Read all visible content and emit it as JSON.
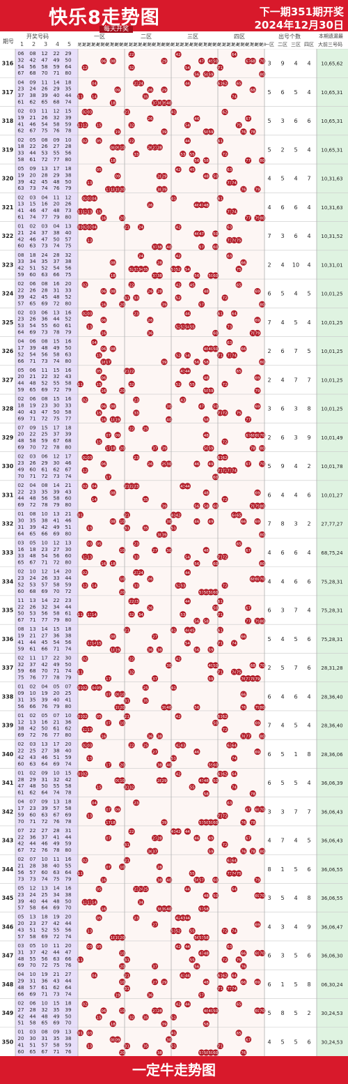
{
  "header": {
    "title": "快乐8走势图",
    "tagline": "每天开奖",
    "next_draw": "下一期351期开奖",
    "next_date": "2024年12月30日"
  },
  "columns": {
    "period": "期号",
    "numbers": "开奖号码",
    "number_cols": [
      "1",
      "2",
      "3",
      "4",
      "5"
    ],
    "zone1": "一区",
    "zone2": "二区",
    "zone3": "三区",
    "zone4": "四区",
    "tail_labels": [
      "尾1",
      "尾2",
      "尾3",
      "尾4",
      "尾5",
      "尾6",
      "尾7",
      "尾8",
      "尾9",
      "尾0"
    ],
    "counts_title": "出号个数",
    "counts_cols": [
      "一区",
      "二区",
      "三区",
      "四区"
    ],
    "missing_title": "本期遗漏最",
    "missing_sub": "大前三号码"
  },
  "footer": {
    "brand": "一定牛走势图"
  },
  "chart_data": {
    "type": "table",
    "rows": [
      {
        "period": "316",
        "nums": [
          6,
          8,
          12,
          22,
          29,
          32,
          42,
          47,
          49,
          50,
          54,
          56,
          58,
          59,
          64,
          67,
          68,
          70,
          71,
          80
        ],
        "counts": [
          3,
          9,
          4,
          4
        ],
        "miss": "10,65,62"
      },
      {
        "period": "317",
        "nums": [
          4,
          9,
          11,
          14,
          18,
          23,
          24,
          26,
          29,
          35,
          37,
          38,
          39,
          40,
          44,
          61,
          62,
          65,
          68,
          74
        ],
        "counts": [
          5,
          6,
          5,
          4
        ],
        "miss": "10,65,31"
      },
      {
        "period": "318",
        "nums": [
          2,
          3,
          11,
          12,
          15,
          19,
          21,
          26,
          32,
          39,
          41,
          46,
          54,
          58,
          59,
          62,
          67,
          75,
          76,
          78
        ],
        "counts": [
          5,
          3,
          6,
          6
        ],
        "miss": "10,65,31"
      },
      {
        "period": "319",
        "nums": [
          2,
          5,
          8,
          9,
          10,
          18,
          22,
          26,
          27,
          28,
          33,
          44,
          53,
          55,
          56,
          58,
          61,
          72,
          77,
          80
        ],
        "counts": [
          5,
          2,
          5,
          4
        ],
        "miss": "10,65,31"
      },
      {
        "period": "320",
        "nums": [
          5,
          9,
          13,
          17,
          18,
          19,
          20,
          28,
          29,
          38,
          39,
          42,
          45,
          48,
          50,
          63,
          73,
          74,
          76,
          79
        ],
        "counts": [
          4,
          5,
          4,
          7
        ],
        "miss": "10,31,63"
      },
      {
        "period": "321",
        "nums": [
          2,
          3,
          4,
          11,
          12,
          13,
          15,
          16,
          20,
          26,
          41,
          46,
          47,
          48,
          73,
          61,
          74,
          77,
          79,
          80
        ],
        "counts": [
          4,
          6,
          6,
          4
        ],
        "miss": "10,31,63"
      },
      {
        "period": "322",
        "nums": [
          1,
          2,
          3,
          4,
          13,
          21,
          24,
          37,
          38,
          40,
          42,
          46,
          47,
          50,
          57,
          60,
          63,
          73,
          74,
          75
        ],
        "counts": [
          7,
          3,
          6,
          4
        ],
        "miss": "10,31,52"
      },
      {
        "period": "323",
        "nums": [
          8,
          18,
          24,
          28,
          32,
          33,
          34,
          35,
          37,
          38,
          42,
          51,
          52,
          54,
          56,
          59,
          60,
          63,
          66,
          75
        ],
        "counts": [
          2,
          4,
          10,
          4
        ],
        "miss": "10,31,01"
      },
      {
        "period": "324",
        "nums": [
          2,
          6,
          8,
          16,
          20,
          22,
          26,
          28,
          31,
          33,
          39,
          42,
          45,
          48,
          52,
          57,
          65,
          69,
          72,
          80
        ],
        "counts": [
          6,
          5,
          4,
          5
        ],
        "miss": "10,01,25"
      },
      {
        "period": "325",
        "nums": [
          2,
          3,
          6,
          13,
          16,
          23,
          26,
          36,
          44,
          52,
          53,
          54,
          55,
          60,
          61,
          64,
          69,
          73,
          78,
          79
        ],
        "counts": [
          7,
          4,
          5,
          4
        ],
        "miss": "10,01,25"
      },
      {
        "period": "326",
        "nums": [
          4,
          6,
          8,
          15,
          16,
          17,
          39,
          48,
          49,
          50,
          52,
          54,
          56,
          58,
          63,
          66,
          71,
          73,
          74,
          80
        ],
        "counts": [
          2,
          6,
          7,
          5
        ],
        "miss": "10,01,25"
      },
      {
        "period": "327",
        "nums": [
          5,
          6,
          11,
          15,
          16,
          20,
          21,
          22,
          32,
          43,
          44,
          48,
          52,
          55,
          58,
          59,
          65,
          69,
          72,
          79
        ],
        "counts": [
          2,
          4,
          7,
          7
        ],
        "miss": "10,01,25"
      },
      {
        "period": "328",
        "nums": [
          2,
          6,
          8,
          15,
          16,
          18,
          19,
          23,
          30,
          33,
          40,
          43,
          47,
          50,
          58,
          69,
          71,
          72,
          75,
          77
        ],
        "counts": [
          3,
          6,
          3,
          8
        ],
        "miss": "10,01,25"
      },
      {
        "period": "329",
        "nums": [
          7,
          9,
          15,
          17,
          18,
          20,
          22,
          25,
          37,
          39,
          48,
          58,
          59,
          67,
          68,
          69,
          70,
          72,
          78,
          80
        ],
        "counts": [
          2,
          6,
          3,
          9
        ],
        "miss": "10,01,49"
      },
      {
        "period": "330",
        "nums": [
          2,
          3,
          6,
          12,
          17,
          23,
          26,
          29,
          30,
          46,
          49,
          60,
          61,
          62,
          67,
          70,
          71,
          72,
          73,
          74
        ],
        "counts": [
          5,
          9,
          4,
          2
        ],
        "miss": "10,01,78"
      },
      {
        "period": "331",
        "nums": [
          2,
          4,
          8,
          14,
          21,
          22,
          23,
          35,
          39,
          43,
          44,
          48,
          56,
          58,
          60,
          69,
          72,
          78,
          79,
          80
        ],
        "counts": [
          6,
          4,
          4,
          6
        ],
        "miss": "10,01,27"
      },
      {
        "period": "332",
        "nums": [
          1,
          8,
          10,
          13,
          21,
          30,
          35,
          38,
          41,
          46,
          31,
          39,
          42,
          49,
          51,
          64,
          65,
          66,
          69,
          80
        ],
        "counts": [
          7,
          8,
          3,
          2
        ],
        "miss": "27,77,27"
      },
      {
        "period": "333",
        "nums": [
          3,
          5,
          10,
          12,
          13,
          16,
          18,
          23,
          27,
          30,
          33,
          48,
          54,
          56,
          60,
          65,
          67,
          71,
          72,
          80
        ],
        "counts": [
          4,
          6,
          6,
          4
        ],
        "miss": "68,75,24"
      },
      {
        "period": "334",
        "nums": [
          2,
          10,
          12,
          14,
          20,
          23,
          24,
          26,
          33,
          44,
          52,
          53,
          57,
          58,
          59,
          60,
          68,
          69,
          70,
          72
        ],
        "counts": [
          4,
          4,
          6,
          6
        ],
        "miss": "75,28,31"
      },
      {
        "period": "335",
        "nums": [
          11,
          13,
          14,
          22,
          23,
          22,
          26,
          32,
          34,
          44,
          50,
          53,
          56,
          58,
          61,
          67,
          71,
          77,
          79,
          80
        ],
        "counts": [
          6,
          3,
          7,
          4
        ],
        "miss": "75,28,31"
      },
      {
        "period": "336",
        "nums": [
          8,
          13,
          14,
          15,
          18,
          19,
          21,
          27,
          36,
          38,
          41,
          44,
          45,
          54,
          56,
          59,
          61,
          66,
          71,
          74
        ],
        "counts": [
          5,
          4,
          5,
          6
        ],
        "miss": "75,28,31"
      },
      {
        "period": "337",
        "nums": [
          2,
          11,
          17,
          22,
          30,
          32,
          37,
          42,
          49,
          50,
          59,
          68,
          70,
          71,
          74,
          75,
          76,
          77,
          78,
          79
        ],
        "counts": [
          2,
          5,
          7,
          6
        ],
        "miss": "28,31,28"
      },
      {
        "period": "338",
        "nums": [
          1,
          2,
          4,
          5,
          7,
          9,
          10,
          19,
          20,
          25,
          31,
          35,
          39,
          40,
          41,
          56,
          66,
          76,
          79,
          80
        ],
        "counts": [
          6,
          4,
          6,
          4
        ],
        "miss": "28,36,40"
      },
      {
        "period": "339",
        "nums": [
          1,
          2,
          5,
          7,
          10,
          12,
          13,
          16,
          21,
          36,
          38,
          42,
          50,
          61,
          62,
          69,
          72,
          76,
          77,
          80
        ],
        "counts": [
          7,
          4,
          5,
          4
        ],
        "miss": "28,36,40"
      },
      {
        "period": "340",
        "nums": [
          2,
          3,
          13,
          17,
          20,
          22,
          25,
          27,
          38,
          40,
          42,
          43,
          46,
          51,
          59,
          60,
          63,
          64,
          69,
          74
        ],
        "counts": [
          6,
          5,
          1,
          8
        ],
        "miss": "28,36,06"
      },
      {
        "period": "341",
        "nums": [
          1,
          2,
          9,
          10,
          15,
          28,
          29,
          31,
          32,
          42,
          47,
          48,
          50,
          55,
          58,
          61,
          62,
          64,
          74,
          78
        ],
        "counts": [
          6,
          5,
          5,
          4
        ],
        "miss": "36,06,39"
      },
      {
        "period": "342",
        "nums": [
          4,
          7,
          9,
          13,
          18,
          17,
          23,
          39,
          57,
          58,
          59,
          60,
          63,
          67,
          69,
          70,
          71,
          72,
          76,
          78
        ],
        "counts": [
          3,
          3,
          7,
          7
        ],
        "miss": "36,06,43"
      },
      {
        "period": "343",
        "nums": [
          7,
          22,
          27,
          28,
          31,
          22,
          36,
          37,
          41,
          44,
          42,
          44,
          46,
          49,
          59,
          67,
          72,
          76,
          78,
          80
        ],
        "counts": [
          4,
          7,
          4,
          5
        ],
        "miss": "36,06,43"
      },
      {
        "period": "344",
        "nums": [
          2,
          7,
          10,
          11,
          16,
          21,
          28,
          38,
          40,
          55,
          56,
          57,
          60,
          63,
          64,
          73,
          73,
          74,
          75,
          79
        ],
        "counts": [
          8,
          1,
          5,
          6
        ],
        "miss": "36,06,55"
      },
      {
        "period": "345",
        "nums": [
          5,
          12,
          13,
          14,
          16,
          23,
          24,
          25,
          34,
          38,
          39,
          40,
          44,
          48,
          50,
          57,
          58,
          64,
          69,
          70
        ],
        "counts": [
          3,
          5,
          4,
          8
        ],
        "miss": "36,06,55"
      },
      {
        "period": "346",
        "nums": [
          5,
          13,
          18,
          19,
          20,
          20,
          23,
          27,
          42,
          44,
          43,
          51,
          52,
          55,
          56,
          57,
          58,
          69,
          72,
          74
        ],
        "counts": [
          4,
          3,
          4,
          9
        ],
        "miss": "36,06,47"
      },
      {
        "period": "347",
        "nums": [
          3,
          5,
          10,
          11,
          20,
          31,
          37,
          42,
          44,
          47,
          48,
          55,
          56,
          63,
          66,
          69,
          70,
          72,
          75,
          76
        ],
        "counts": [
          6,
          3,
          5,
          6
        ],
        "miss": "36,06,30"
      },
      {
        "period": "348",
        "nums": [
          4,
          10,
          19,
          21,
          27,
          29,
          31,
          36,
          43,
          44,
          48,
          57,
          61,
          62,
          64,
          66,
          69,
          71,
          73,
          74
        ],
        "counts": [
          6,
          1,
          5,
          8
        ],
        "miss": "06,30,24"
      },
      {
        "period": "349",
        "nums": [
          2,
          6,
          10,
          15,
          18,
          27,
          28,
          32,
          35,
          39,
          42,
          44,
          48,
          49,
          50,
          51,
          58,
          65,
          69,
          70
        ],
        "counts": [
          5,
          8,
          5,
          2
        ],
        "miss": "30,24,53"
      },
      {
        "period": "350",
        "nums": [
          1,
          3,
          8,
          9,
          13,
          20,
          30,
          31,
          35,
          38,
          41,
          51,
          57,
          58,
          59,
          60,
          65,
          67,
          71,
          76
        ],
        "counts": [
          4,
          5,
          5,
          6
        ],
        "miss": "30,24,53"
      }
    ]
  }
}
